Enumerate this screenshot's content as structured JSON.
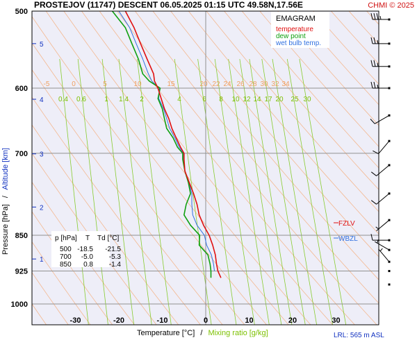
{
  "header": {
    "title": "PROSTEJOV (11747)   DESCENT   06.05.2025 01:15 UTC  49.58N,17.56E",
    "copyright": "CHMI © 2025"
  },
  "legend": {
    "title": "EMAGRAM",
    "items": [
      {
        "label": "temperature",
        "color": "#e01010"
      },
      {
        "label": "dew point",
        "color": "#10a010"
      },
      {
        "label": "wet bulb temp.",
        "color": "#3070e0"
      }
    ]
  },
  "axes": {
    "xlabel_temp": "Temperature [°C]",
    "xlabel_sep": "/",
    "xlabel_mix": "Mixing ratio [g/kg]",
    "ylabel_pressure": "Pressure [hPa]",
    "ylabel_sep": "/",
    "ylabel_alt": "Altitude [km]",
    "pressure_ticks": [
      "500",
      "600",
      "700",
      "850",
      "925",
      "1000"
    ],
    "temp_ticks": [
      "-30",
      "-20",
      "-10",
      "0",
      "10",
      "20",
      "30"
    ],
    "altitude_ticks": [
      "5",
      "4",
      "3",
      "2",
      "1"
    ],
    "mixing_ratio_labels": [
      "0.4",
      "0.6",
      "1",
      "1.4",
      "2",
      "4",
      "6",
      "8",
      "10",
      "12",
      "14",
      "17",
      "20",
      "25",
      "30"
    ],
    "theta_labels": [
      "-5",
      "0",
      "5",
      "10",
      "15",
      "20",
      "22",
      "24",
      "26",
      "28",
      "30",
      "32",
      "34"
    ]
  },
  "table": {
    "headers": [
      "p [hPa]",
      "T",
      "Td [°C]"
    ],
    "rows": [
      [
        "500",
        "-18.5",
        "-21.5"
      ],
      [
        "700",
        "-5.0",
        "-5.3"
      ],
      [
        "850",
        "0.8",
        "-1.4"
      ]
    ]
  },
  "levels": {
    "fzlv": "FZLV",
    "wbzl": "WBZL",
    "fzlv_color": "#e01010",
    "wbzl_color": "#3070e0"
  },
  "footer": {
    "lrl": "LRL: 565 m ASL"
  },
  "chart_data": {
    "type": "line",
    "title": "PROSTEJOV (11747)   DESCENT   06.05.2025 01:15 UTC  49.58N,17.56E",
    "xlabel": "Temperature [°C]",
    "ylabel": "Pressure [hPa]",
    "xlim": [
      -40,
      40
    ],
    "ylim": [
      1000,
      500
    ],
    "y_scale": "log",
    "grid": true,
    "legend_position": "top-right",
    "series": [
      {
        "name": "temperature",
        "color": "#e01010",
        "p": [
          940,
          925,
          910,
          890,
          870,
          850,
          830,
          810,
          790,
          770,
          750,
          730,
          710,
          700,
          690,
          675,
          660,
          645,
          630,
          610,
          600,
          590,
          580,
          560,
          540,
          520,
          500
        ],
        "t": [
          3.5,
          2.8,
          2.5,
          2.2,
          1.6,
          0.8,
          -0.5,
          -1.5,
          -2.0,
          -2.8,
          -3.8,
          -4.8,
          -5.0,
          -5.0,
          -5.8,
          -6.8,
          -7.8,
          -8.5,
          -9.5,
          -10.5,
          -11.0,
          -11.8,
          -12.0,
          -13.5,
          -15.0,
          -16.5,
          -18.5
        ]
      },
      {
        "name": "dew point",
        "color": "#10a010",
        "p": [
          940,
          925,
          910,
          890,
          870,
          850,
          830,
          810,
          790,
          770,
          750,
          730,
          710,
          700,
          690,
          675,
          660,
          645,
          630,
          615,
          600,
          590,
          580,
          560,
          540,
          520,
          500
        ],
        "t": [
          1.2,
          1.2,
          1.0,
          0.5,
          -1.5,
          -1.4,
          -3.5,
          -5.0,
          -4.5,
          -3.5,
          -4.0,
          -4.8,
          -5.3,
          -5.3,
          -6.5,
          -7.5,
          -9.0,
          -9.5,
          -10.0,
          -11.0,
          -10.5,
          -13.0,
          -14.5,
          -15.5,
          -17.0,
          -18.5,
          -21.5
        ]
      },
      {
        "name": "wet bulb temp.",
        "color": "#3070e0",
        "p": [
          925,
          910,
          890,
          870,
          850,
          830,
          810,
          790,
          770,
          750,
          730,
          710,
          700,
          690,
          675,
          660,
          645,
          630,
          615,
          600,
          590,
          580,
          560,
          540,
          520,
          500
        ],
        "t": [
          2.0,
          1.8,
          1.3,
          0.2,
          -0.3,
          -2.0,
          -3.0,
          -3.2,
          -3.2,
          -3.9,
          -4.8,
          -5.1,
          -5.1,
          -6.1,
          -7.1,
          -8.3,
          -9.0,
          -9.7,
          -10.8,
          -10.7,
          -12.4,
          -13.2,
          -14.5,
          -16.0,
          -17.5,
          -20.0
        ]
      }
    ],
    "wind_barbs": [
      {
        "p": 510,
        "dir": 270,
        "speed": 35
      },
      {
        "p": 540,
        "dir": 270,
        "speed": 25
      },
      {
        "p": 570,
        "dir": 270,
        "speed": 25
      },
      {
        "p": 600,
        "dir": 270,
        "speed": 25
      },
      {
        "p": 640,
        "dir": 240,
        "speed": 10
      },
      {
        "p": 680,
        "dir": 220,
        "speed": 10
      },
      {
        "p": 720,
        "dir": 230,
        "speed": 10
      },
      {
        "p": 770,
        "dir": 230,
        "speed": 10
      },
      {
        "p": 820,
        "dir": 230,
        "speed": 5
      },
      {
        "p": 860,
        "dir": 270,
        "speed": 10
      },
      {
        "p": 880,
        "dir": 300,
        "speed": 5
      },
      {
        "p": 905,
        "dir": 320,
        "speed": 5
      },
      {
        "p": 925,
        "dir": 0,
        "speed": 0
      },
      {
        "p": 955,
        "dir": 0,
        "speed": 0
      }
    ]
  }
}
